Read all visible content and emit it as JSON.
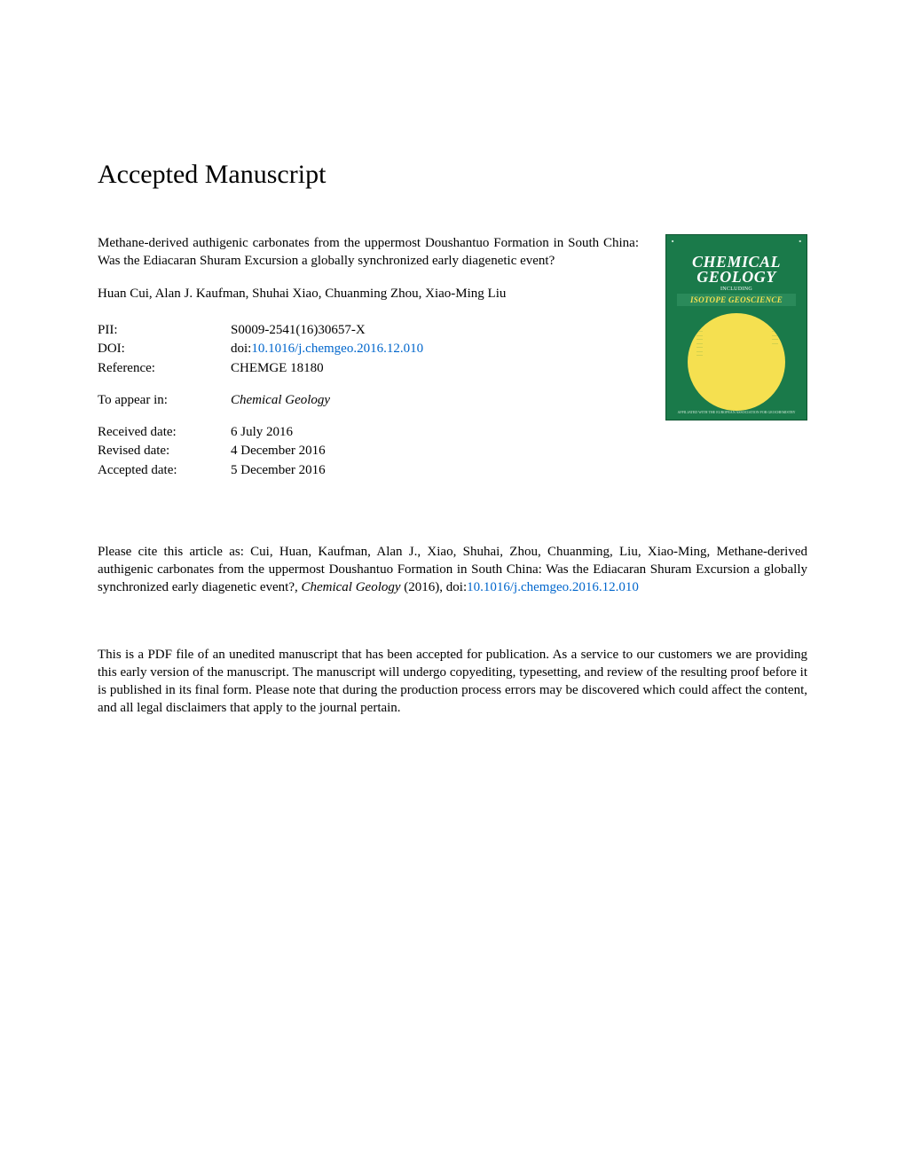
{
  "heading": "Accepted Manuscript",
  "article_title": "Methane-derived authigenic carbonates from the uppermost Doushantuo Formation in South China: Was the Ediacaran Shuram Excursion a globally synchronized early diagenetic event?",
  "authors": "Huan Cui, Alan J. Kaufman, Shuhai Xiao, Chuanming Zhou, Xiao-Ming Liu",
  "meta": {
    "pii_label": "PII:",
    "pii_value": "S0009-2541(16)30657-X",
    "doi_label": "DOI:",
    "doi_prefix": "doi:",
    "doi_link": "10.1016/j.chemgeo.2016.12.010",
    "ref_label": "Reference:",
    "ref_value": "CHEMGE 18180",
    "appear_label": "To appear in:",
    "appear_value": "Chemical Geology",
    "received_label": "Received date:",
    "received_value": "6 July 2016",
    "revised_label": "Revised date:",
    "revised_value": "4 December 2016",
    "accepted_label": "Accepted date:",
    "accepted_value": "5 December 2016"
  },
  "citation": {
    "pre": "Please cite this article as: Cui, Huan, Kaufman, Alan J., Xiao, Shuhai, Zhou, Chuanming, Liu, Xiao-Ming, Methane-derived authigenic carbonates from the uppermost Doushantuo Formation in South China: Was the Ediacaran Shuram Excursion a globally synchronized early diagenetic event?, ",
    "journal": "Chemical Geology",
    "year": " (2016),  doi:",
    "link": "10.1016/j.chemgeo.2016.12.010"
  },
  "disclaimer": "This is a PDF file of an unedited manuscript that has been accepted for publication. As a service to our customers we are providing this early version of the manuscript. The manuscript will undergo copyediting, typesetting, and review of the resulting proof before it is published in its final form. Please note that during the production process errors may be discovered which could affect the content, and all legal disclaimers that apply to the journal pertain.",
  "cover": {
    "journal_line1": "CHEMICAL",
    "journal_line2": "GEOLOGY",
    "including": "INCLUDING",
    "isotope": "ISOTOPE GEOSCIENCE",
    "footer": "AFFILIATED WITH THE EUROPEAN ASSOCIATION FOR GEOCHEMISTRY",
    "bg_color": "#1a7a4a",
    "circle_color": "#f5e050",
    "text_color": "#ffffff"
  }
}
